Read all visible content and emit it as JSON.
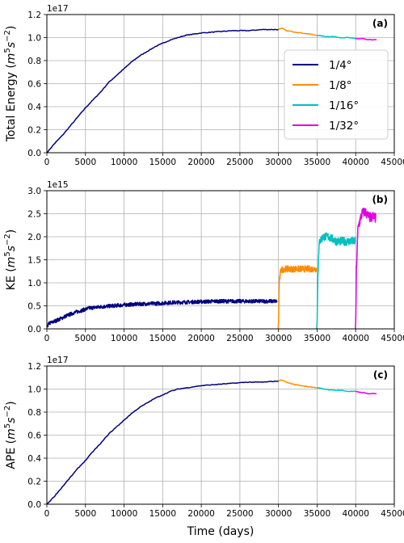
{
  "chart_data": [
    {
      "type": "line",
      "panel": "(a)",
      "ylabel_main": "Total Energy",
      "ylabel_unit": "(m^5 s^-2)",
      "y_offset_text": "1e17",
      "xlim": [
        0,
        45000
      ],
      "ylim": [
        0,
        1.2
      ],
      "xticks": [
        "0",
        "5000",
        "10000",
        "15000",
        "20000",
        "25000",
        "30000",
        "35000",
        "40000",
        "45000"
      ],
      "yticks": [
        "0.0",
        "0.2",
        "0.4",
        "0.6",
        "0.8",
        "1.0",
        "1.2"
      ],
      "xtick_values": [
        0,
        5000,
        10000,
        15000,
        20000,
        25000,
        30000,
        35000,
        40000,
        45000
      ],
      "ytick_values": [
        0,
        0.2,
        0.4,
        0.6,
        0.8,
        1.0,
        1.2
      ],
      "grid": true,
      "legend": {
        "placement": "center-right",
        "entries": [
          "1/4°",
          "1/8°",
          "1/16°",
          "1/32°"
        ]
      },
      "series": [
        {
          "name": "1/4°",
          "color": "#000080",
          "x": [
            0,
            1000,
            2000,
            3000,
            4000,
            5000,
            6000,
            7000,
            8000,
            9000,
            10000,
            11000,
            12000,
            13000,
            14000,
            15000,
            16000,
            17000,
            18000,
            19000,
            20000,
            22000,
            24000,
            26000,
            28000,
            30000
          ],
          "y": [
            0,
            0.08,
            0.15,
            0.23,
            0.31,
            0.39,
            0.46,
            0.53,
            0.61,
            0.67,
            0.73,
            0.79,
            0.84,
            0.88,
            0.92,
            0.95,
            0.98,
            1.0,
            1.02,
            1.03,
            1.04,
            1.05,
            1.06,
            1.06,
            1.07,
            1.07
          ]
        },
        {
          "name": "1/8°",
          "color": "#ff8c00",
          "x": [
            30000,
            30500,
            31000,
            32000,
            33000,
            34000,
            35000
          ],
          "y": [
            1.07,
            1.08,
            1.06,
            1.05,
            1.04,
            1.03,
            1.02
          ]
        },
        {
          "name": "1/16°",
          "color": "#00c0c0",
          "x": [
            35000,
            36000,
            37000,
            38000,
            39000,
            40000
          ],
          "y": [
            1.02,
            1.01,
            1.01,
            1.0,
            1.0,
            0.99
          ]
        },
        {
          "name": "1/32°",
          "color": "#e000e0",
          "x": [
            40000,
            40500,
            41000,
            41500,
            42000,
            42700
          ],
          "y": [
            0.99,
            0.99,
            0.99,
            0.98,
            0.98,
            0.98
          ]
        }
      ]
    },
    {
      "type": "line",
      "panel": "(b)",
      "ylabel_main": "KE",
      "ylabel_unit": "(m^5 s^-2)",
      "y_offset_text": "1e15",
      "xlim": [
        0,
        45000
      ],
      "ylim": [
        0,
        3.0
      ],
      "xticks": [
        "0",
        "5000",
        "10000",
        "15000",
        "20000",
        "25000",
        "30000",
        "35000",
        "40000",
        "45000"
      ],
      "yticks": [
        "0.0",
        "0.5",
        "1.0",
        "1.5",
        "2.0",
        "2.5",
        "3.0"
      ],
      "xtick_values": [
        0,
        5000,
        10000,
        15000,
        20000,
        25000,
        30000,
        35000,
        40000,
        45000
      ],
      "ytick_values": [
        0,
        0.5,
        1.0,
        1.5,
        2.0,
        2.5,
        3.0
      ],
      "grid": true,
      "series": [
        {
          "name": "1/4°",
          "color": "#000080",
          "x": [
            0,
            300,
            800,
            1500,
            2500,
            3500,
            4500,
            5500,
            7000,
            8500,
            10000,
            12000,
            14000,
            16000,
            18000,
            20000,
            22000,
            24000,
            26000,
            28000,
            29800
          ],
          "y": [
            0.05,
            0.12,
            0.15,
            0.2,
            0.28,
            0.35,
            0.4,
            0.45,
            0.48,
            0.5,
            0.52,
            0.54,
            0.55,
            0.57,
            0.58,
            0.59,
            0.6,
            0.6,
            0.6,
            0.6,
            0.6
          ],
          "noise": 0.04
        },
        {
          "name": "1/8°",
          "color": "#ff8c00",
          "x": [
            29950,
            30000,
            30100,
            30300,
            30800,
            31500,
            32500,
            33500,
            34500,
            34950
          ],
          "y": [
            0.0,
            0.1,
            1.0,
            1.28,
            1.3,
            1.3,
            1.3,
            1.3,
            1.3,
            1.3
          ],
          "noise": 0.07
        },
        {
          "name": "1/16°",
          "color": "#00c0c0",
          "x": [
            34950,
            35000,
            35100,
            35300,
            35800,
            36500,
            37500,
            38500,
            39500,
            39950
          ],
          "y": [
            0.0,
            0.1,
            1.2,
            1.9,
            2.0,
            2.0,
            1.9,
            1.9,
            1.9,
            1.9
          ],
          "noise": 0.09
        },
        {
          "name": "1/32°",
          "color": "#e000e0",
          "x": [
            39950,
            40000,
            40100,
            40300,
            40800,
            41200,
            41600,
            42000,
            42300,
            42600
          ],
          "y": [
            0.0,
            0.1,
            1.3,
            2.2,
            2.5,
            2.55,
            2.45,
            2.4,
            2.45,
            2.4
          ],
          "noise": 0.11
        }
      ]
    },
    {
      "type": "line",
      "panel": "(c)",
      "ylabel_main": "APE",
      "ylabel_unit": "(m^5 s^-2)",
      "y_offset_text": "1e17",
      "xlim": [
        0,
        45000
      ],
      "ylim": [
        0,
        1.2
      ],
      "xlabel": "Time (days)",
      "xticks": [
        "0",
        "5000",
        "10000",
        "15000",
        "20000",
        "25000",
        "30000",
        "35000",
        "40000",
        "45000"
      ],
      "yticks": [
        "0.0",
        "0.2",
        "0.4",
        "0.6",
        "0.8",
        "1.0",
        "1.2"
      ],
      "xtick_values": [
        0,
        5000,
        10000,
        15000,
        20000,
        25000,
        30000,
        35000,
        40000,
        45000
      ],
      "ytick_values": [
        0,
        0.2,
        0.4,
        0.6,
        0.8,
        1.0,
        1.2
      ],
      "grid": true,
      "series": [
        {
          "name": "1/4°",
          "color": "#000080",
          "x": [
            0,
            1000,
            2000,
            3000,
            4000,
            5000,
            6000,
            7000,
            8000,
            9000,
            10000,
            11000,
            12000,
            13000,
            14000,
            15000,
            16000,
            17000,
            18000,
            19000,
            20000,
            22000,
            24000,
            26000,
            28000,
            30000
          ],
          "y": [
            0,
            0.07,
            0.15,
            0.23,
            0.31,
            0.38,
            0.46,
            0.53,
            0.61,
            0.67,
            0.73,
            0.79,
            0.84,
            0.88,
            0.92,
            0.95,
            0.98,
            1.0,
            1.01,
            1.02,
            1.03,
            1.04,
            1.05,
            1.06,
            1.06,
            1.07
          ]
        },
        {
          "name": "1/8°",
          "color": "#ff8c00",
          "x": [
            30000,
            30500,
            31000,
            32000,
            33000,
            34000,
            35000
          ],
          "y": [
            1.07,
            1.08,
            1.06,
            1.04,
            1.03,
            1.02,
            1.01
          ]
        },
        {
          "name": "1/16°",
          "color": "#00c0c0",
          "x": [
            35000,
            36000,
            37000,
            38000,
            39000,
            40000
          ],
          "y": [
            1.01,
            1.0,
            0.99,
            0.99,
            0.98,
            0.98
          ]
        },
        {
          "name": "1/32°",
          "color": "#e000e0",
          "x": [
            40000,
            40500,
            41000,
            41500,
            42000,
            42700
          ],
          "y": [
            0.98,
            0.97,
            0.97,
            0.96,
            0.96,
            0.96
          ]
        }
      ]
    }
  ]
}
